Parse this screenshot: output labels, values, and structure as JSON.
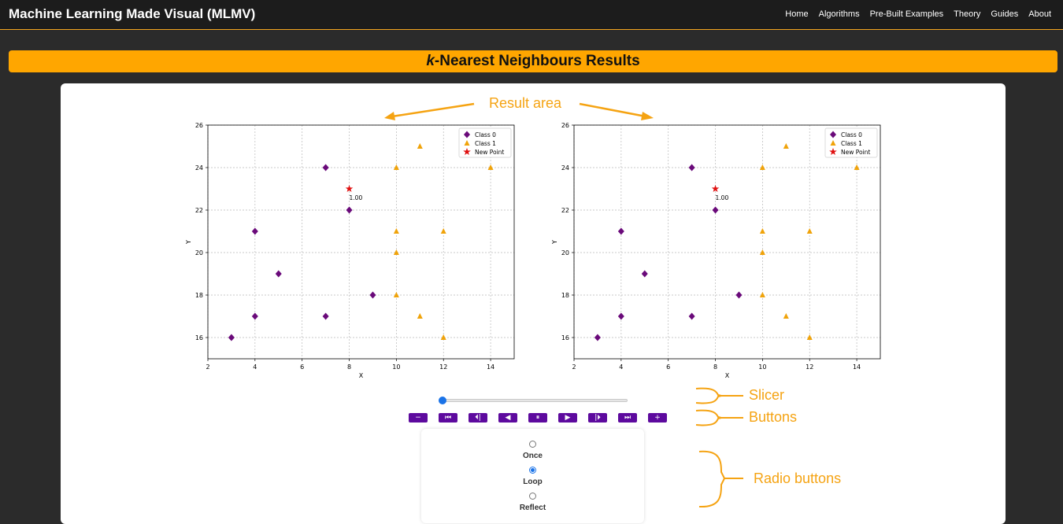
{
  "header": {
    "title": "Machine Learning Made Visual (MLMV)",
    "nav": [
      "Home",
      "Algorithms",
      "Pre-Built Examples",
      "Theory",
      "Guides",
      "About"
    ]
  },
  "page": {
    "title_k": "k",
    "title_rest": "-Nearest Neighbours Results"
  },
  "annotations": {
    "result_area": "Result area",
    "slicer": "Slicer",
    "buttons": "Buttons",
    "radio_buttons": "Radio buttons"
  },
  "colors": {
    "accent": "#ffa600",
    "class0": "#6a0a7a",
    "class1": "#f0a30a",
    "new_point": "#e01010",
    "button": "#5d0a9e"
  },
  "chart_data": [
    {
      "type": "scatter",
      "xlabel": "X",
      "ylabel": "Y",
      "xlim": [
        2,
        15
      ],
      "ylim": [
        15,
        26
      ],
      "xticks": [
        2,
        4,
        6,
        8,
        10,
        12,
        14
      ],
      "yticks": [
        16,
        18,
        20,
        22,
        24,
        26
      ],
      "grid": true,
      "legend_position": "top-right",
      "series": [
        {
          "name": "Class 0",
          "marker": "diamond",
          "points": [
            [
              3,
              16
            ],
            [
              4,
              17
            ],
            [
              4,
              21
            ],
            [
              5,
              19
            ],
            [
              7,
              17
            ],
            [
              7,
              24
            ],
            [
              8,
              22
            ],
            [
              9,
              18
            ]
          ]
        },
        {
          "name": "Class 1",
          "marker": "triangle",
          "points": [
            [
              10,
              18
            ],
            [
              10,
              20
            ],
            [
              10,
              21
            ],
            [
              10,
              24
            ],
            [
              11,
              17
            ],
            [
              11,
              25
            ],
            [
              12,
              16
            ],
            [
              12,
              21
            ],
            [
              14,
              24
            ]
          ]
        },
        {
          "name": "New Point",
          "marker": "star",
          "points": [
            [
              8,
              23
            ]
          ]
        }
      ],
      "annotations": [
        {
          "x": 8,
          "y": 23,
          "text": "1.00"
        }
      ]
    },
    {
      "type": "scatter",
      "xlabel": "X",
      "ylabel": "Y",
      "xlim": [
        2,
        15
      ],
      "ylim": [
        15,
        26
      ],
      "xticks": [
        2,
        4,
        6,
        8,
        10,
        12,
        14
      ],
      "yticks": [
        16,
        18,
        20,
        22,
        24,
        26
      ],
      "grid": true,
      "legend_position": "top-right",
      "series": [
        {
          "name": "Class 0",
          "marker": "diamond",
          "points": [
            [
              3,
              16
            ],
            [
              4,
              17
            ],
            [
              4,
              21
            ],
            [
              5,
              19
            ],
            [
              7,
              17
            ],
            [
              7,
              24
            ],
            [
              8,
              22
            ],
            [
              9,
              18
            ]
          ]
        },
        {
          "name": "Class 1",
          "marker": "triangle",
          "points": [
            [
              10,
              18
            ],
            [
              10,
              20
            ],
            [
              10,
              21
            ],
            [
              10,
              24
            ],
            [
              11,
              17
            ],
            [
              11,
              25
            ],
            [
              12,
              16
            ],
            [
              12,
              21
            ],
            [
              14,
              24
            ]
          ]
        },
        {
          "name": "New Point",
          "marker": "star",
          "points": [
            [
              8,
              23
            ]
          ]
        }
      ],
      "annotations": [
        {
          "x": 8,
          "y": 23,
          "text": "1.00"
        }
      ]
    }
  ],
  "controls": {
    "slider_value": 0,
    "buttons": [
      {
        "name": "minus-button",
        "glyph": "−"
      },
      {
        "name": "first-frame-button",
        "glyph": "⏮"
      },
      {
        "name": "prev-frame-button",
        "glyph": "⏴|"
      },
      {
        "name": "play-reverse-button",
        "glyph": "◀"
      },
      {
        "name": "pause-button",
        "glyph": "⏸"
      },
      {
        "name": "play-button",
        "glyph": "▶"
      },
      {
        "name": "next-frame-button",
        "glyph": "|⏵"
      },
      {
        "name": "last-frame-button",
        "glyph": "⏭"
      },
      {
        "name": "plus-button",
        "glyph": "+"
      }
    ],
    "radio": [
      {
        "label": "Once",
        "selected": false
      },
      {
        "label": "Loop",
        "selected": true
      },
      {
        "label": "Reflect",
        "selected": false
      }
    ]
  }
}
